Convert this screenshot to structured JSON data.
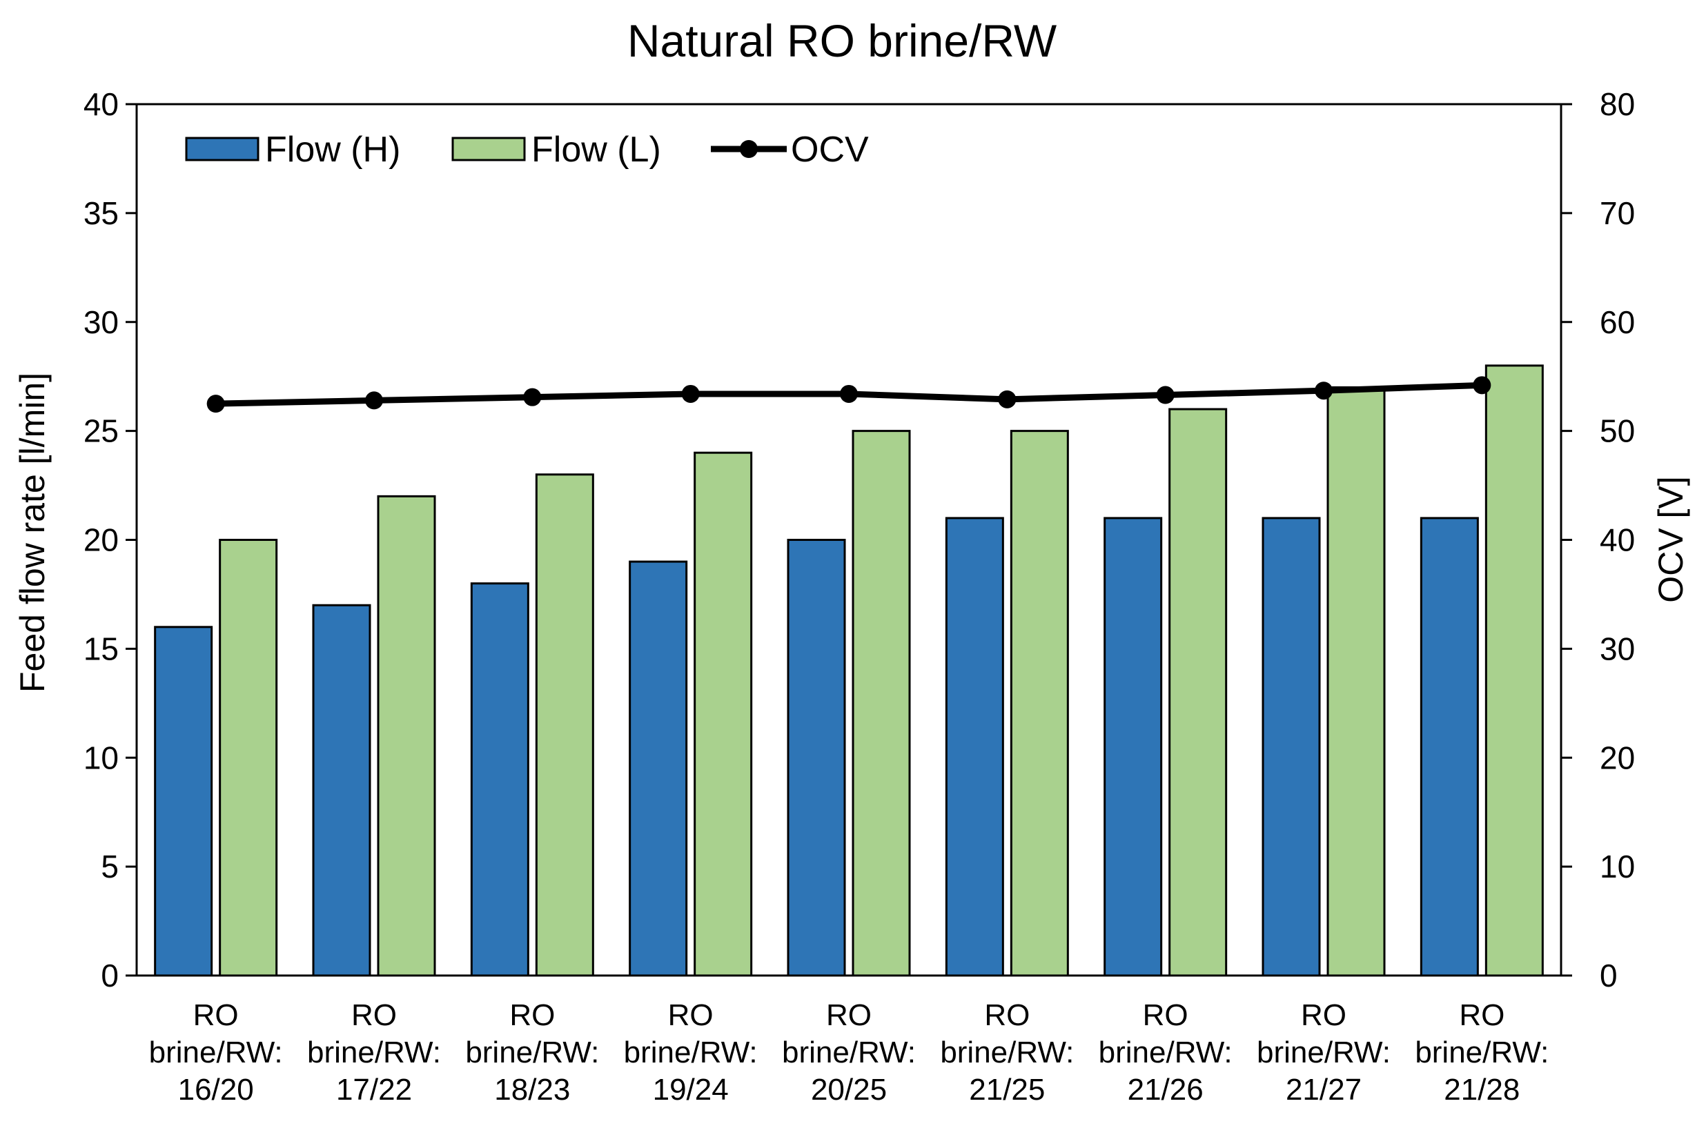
{
  "chart_data": {
    "type": "bar",
    "title": "Natural RO brine/RW",
    "ylabel": "Feed flow rate [l/min]",
    "y2label": "OCV [V]",
    "ylim": [
      0,
      40
    ],
    "y2lim": [
      0,
      80
    ],
    "yticks": [
      "0",
      "5",
      "10",
      "15",
      "20",
      "25",
      "30",
      "35",
      "40"
    ],
    "y2ticks": [
      "0",
      "10",
      "20",
      "30",
      "40",
      "50",
      "60",
      "70",
      "80"
    ],
    "categories": [
      [
        "RO",
        "brine/RW:",
        "16/20"
      ],
      [
        "RO",
        "brine/RW:",
        "17/22"
      ],
      [
        "RO",
        "brine/RW:",
        "18/23"
      ],
      [
        "RO",
        "brine/RW:",
        "19/24"
      ],
      [
        "RO",
        "brine/RW:",
        "20/25"
      ],
      [
        "RO",
        "brine/RW:",
        "21/25"
      ],
      [
        "RO",
        "brine/RW:",
        "21/26"
      ],
      [
        "RO",
        "brine/RW:",
        "21/27"
      ],
      [
        "RO",
        "brine/RW:",
        "21/28"
      ]
    ],
    "series": [
      {
        "name": "Flow (H)",
        "kind": "bar",
        "axis": "left",
        "color": "#2E75B6",
        "values": [
          16,
          17,
          18,
          19,
          20,
          21,
          21,
          21,
          21
        ]
      },
      {
        "name": "Flow (L)",
        "kind": "bar",
        "axis": "left",
        "color": "#A9D18E",
        "values": [
          20,
          22,
          23,
          24,
          25,
          25,
          26,
          27,
          28
        ]
      },
      {
        "name": "OCV",
        "kind": "line",
        "axis": "right",
        "color": "#000000",
        "values": [
          52.5,
          52.8,
          53.1,
          53.4,
          53.4,
          52.9,
          53.3,
          53.7,
          54.2
        ]
      }
    ],
    "legend": "top-left",
    "grid": false
  }
}
